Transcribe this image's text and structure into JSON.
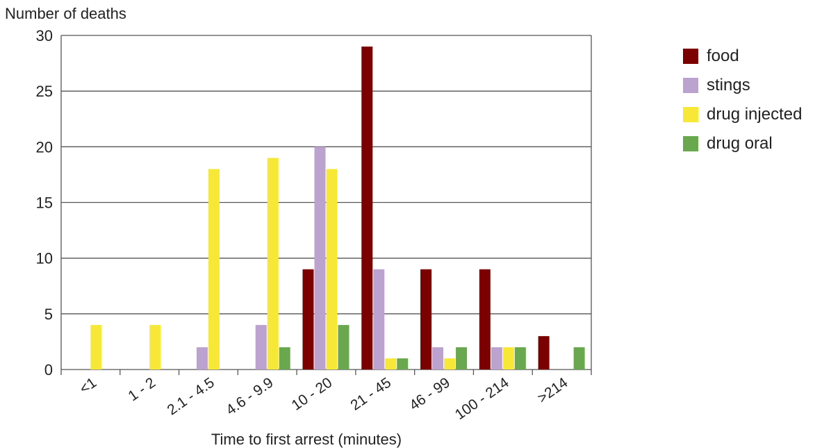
{
  "chart_data": {
    "type": "bar",
    "ylabel": "Number of deaths",
    "xlabel": "Time to first arrest (minutes)",
    "categories": [
      "<1",
      "1 - 2",
      "2.1 - 4.5",
      "4.6 - 9.9",
      "10 - 20",
      "21 - 45",
      "46 - 99",
      "100 - 214",
      ">214"
    ],
    "ylim": [
      0,
      30
    ],
    "yticks": [
      0,
      5,
      10,
      15,
      20,
      25,
      30
    ],
    "grid": true,
    "legend_position": "right",
    "series": [
      {
        "name": "food",
        "color": "#7b0000",
        "values": [
          0,
          0,
          0,
          0,
          9,
          29,
          9,
          9,
          3
        ]
      },
      {
        "name": "stings",
        "color": "#bca3cf",
        "values": [
          0,
          0,
          2,
          4,
          20,
          9,
          2,
          2,
          0
        ]
      },
      {
        "name": "drug injected",
        "color": "#f7e838",
        "values": [
          4,
          4,
          18,
          19,
          18,
          1,
          1,
          2,
          0
        ]
      },
      {
        "name": "drug oral",
        "color": "#6aa84f",
        "values": [
          0,
          0,
          0,
          2,
          4,
          1,
          2,
          2,
          2
        ]
      }
    ]
  }
}
